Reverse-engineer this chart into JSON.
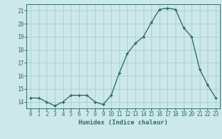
{
  "x": [
    0,
    1,
    2,
    3,
    4,
    5,
    6,
    7,
    8,
    9,
    10,
    11,
    12,
    13,
    14,
    15,
    16,
    17,
    18,
    19,
    20,
    21,
    22,
    23
  ],
  "y": [
    14.3,
    14.3,
    14.0,
    13.7,
    14.0,
    14.5,
    14.5,
    14.5,
    14.0,
    13.8,
    14.5,
    16.2,
    17.7,
    18.5,
    19.0,
    20.1,
    21.1,
    21.2,
    21.1,
    19.7,
    19.0,
    16.5,
    15.3,
    14.3
  ],
  "line_color": "#2d6e6e",
  "marker": "D",
  "marker_size": 2.0,
  "bg_color": "#cce8e8",
  "grid_color": "#aacccc",
  "xlabel": "Humidex (Indice chaleur)",
  "ylabel": "",
  "xlim": [
    -0.5,
    23.5
  ],
  "ylim": [
    13.5,
    21.5
  ],
  "yticks": [
    14,
    15,
    16,
    17,
    18,
    19,
    20,
    21
  ],
  "xticks": [
    0,
    1,
    2,
    3,
    4,
    5,
    6,
    7,
    8,
    9,
    10,
    11,
    12,
    13,
    14,
    15,
    16,
    17,
    18,
    19,
    20,
    21,
    22,
    23
  ],
  "xlabel_fontsize": 6.5,
  "tick_fontsize": 5.5,
  "line_width": 1.0
}
